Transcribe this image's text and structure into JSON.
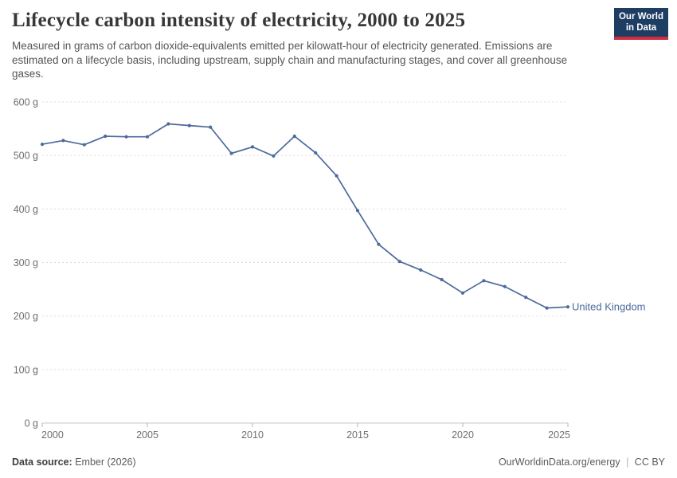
{
  "header": {
    "title": "Lifecycle carbon intensity of electricity, 2000 to 2025",
    "subtitle": "Measured in grams of carbon dioxide-equivalents emitted per kilowatt-hour of electricity generated. Emissions are estimated on a lifecycle basis, including upstream, supply chain and manufacturing stages, and cover all greenhouse gases.",
    "logo": {
      "line1": "Our World",
      "line2": "in Data",
      "bg_color": "#1d3d63",
      "accent_color": "#cf2e41"
    }
  },
  "chart_data": {
    "type": "line",
    "title": "Lifecycle carbon intensity of electricity, 2000 to 2025",
    "x": [
      2000,
      2001,
      2002,
      2003,
      2004,
      2005,
      2006,
      2007,
      2008,
      2009,
      2010,
      2011,
      2012,
      2013,
      2014,
      2015,
      2016,
      2017,
      2018,
      2019,
      2020,
      2021,
      2022,
      2023,
      2024,
      2025
    ],
    "series": [
      {
        "name": "United Kingdom",
        "color": "#4c6a9c",
        "values": [
          521,
          528,
          520,
          536,
          535,
          535,
          559,
          556,
          553,
          504,
          516,
          499,
          536,
          505,
          462,
          397,
          334,
          302,
          286,
          268,
          243,
          266,
          255,
          235,
          215,
          217
        ]
      }
    ],
    "xlabel": "",
    "ylabel": "",
    "ylim": [
      0,
      600
    ],
    "yticks": [
      0,
      100,
      200,
      300,
      400,
      500,
      600
    ],
    "ytick_suffix": " g",
    "xticks": [
      2000,
      2005,
      2010,
      2015,
      2020,
      2025
    ],
    "grid": "horizontal-dashed",
    "legend_position": "end-of-line-label",
    "colors": {
      "gridline": "#dcdcdc",
      "axis_line": "#c8c8c8",
      "tick": "#b5b5b5",
      "axis_text": "#6e6e6e"
    }
  },
  "footer": {
    "source_label": "Data source:",
    "source_value": "Ember (2026)",
    "link": "OurWorldinData.org/energy",
    "separator": "|",
    "license": "CC BY"
  }
}
